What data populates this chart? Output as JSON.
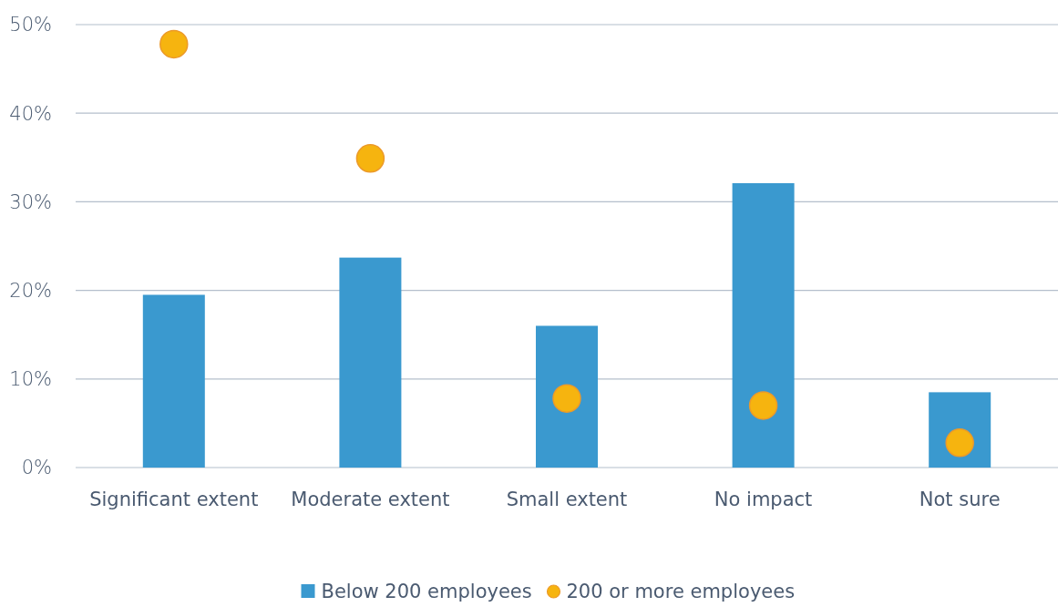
{
  "chart_data": {
    "type": "bar",
    "categories": [
      "Significant extent",
      "Moderate extent",
      "Small extent",
      "No impact",
      "Not sure"
    ],
    "series": [
      {
        "name": "Below 200 employees",
        "color": "#3a99cf",
        "values": [
          19.5,
          23.7,
          16,
          32.1,
          8.5
        ]
      },
      {
        "name": "200 or more employees",
        "type": "scatter",
        "color": "#f6b40f",
        "x": [
          "Significant extent",
          "Moderate extent",
          "Small extent",
          "No impact",
          "Not sure"
        ],
        "values": [
          47.8,
          34.9,
          7.8,
          7,
          2.8
        ]
      }
    ],
    "ylim": [
      0,
      50
    ],
    "yticks": [
      {
        "value": 0,
        "label": "0%"
      },
      {
        "value": 10,
        "label": "10%"
      },
      {
        "value": 20,
        "label": "20%"
      },
      {
        "value": 30,
        "label": "30%"
      },
      {
        "value": 40,
        "label": "40%"
      },
      {
        "value": 50,
        "label": "50%"
      }
    ],
    "grid": "y",
    "legend": "bottom",
    "marker": "circle"
  }
}
